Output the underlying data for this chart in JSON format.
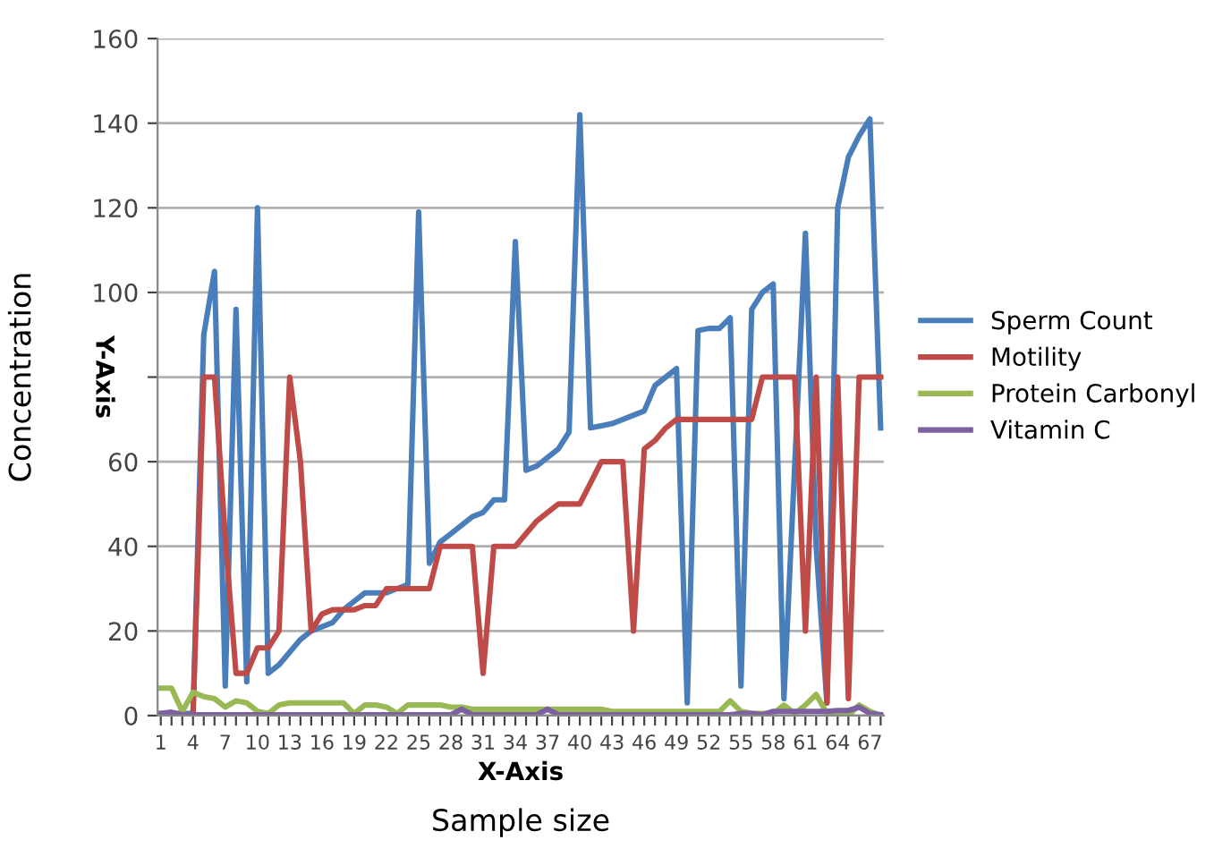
{
  "chart_data": {
    "type": "line",
    "ylabel": "Concentration",
    "xlabel": "Sample size",
    "annotations": [
      "Y-Axis",
      "X-Axis"
    ],
    "categories": [
      "1",
      null,
      null,
      "4",
      null,
      null,
      "7",
      null,
      null,
      "10",
      null,
      null,
      "13",
      null,
      null,
      "16",
      null,
      null,
      "19",
      null,
      null,
      "22",
      null,
      null,
      "25",
      null,
      null,
      "28",
      null,
      null,
      "31",
      null,
      null,
      "34",
      null,
      null,
      "37",
      null,
      null,
      "40",
      null,
      null,
      "43",
      null,
      null,
      "46",
      null,
      null,
      "49",
      null,
      null,
      "52",
      null,
      null,
      "55",
      null,
      null,
      "58",
      null,
      null,
      "61",
      null,
      null,
      "64",
      null,
      null,
      "67",
      null
    ],
    "series": [
      {
        "name": "Sperm Count",
        "color": "#4a7ebb",
        "values": [
          0.5,
          0.5,
          0.5,
          0.5,
          90,
          105,
          7,
          96,
          8,
          120,
          10,
          12,
          15,
          18,
          20,
          21,
          22,
          25,
          27,
          29,
          29,
          29,
          30,
          31,
          119,
          36,
          41,
          43,
          45,
          47,
          48,
          51,
          51,
          112,
          58,
          59,
          61,
          63,
          67,
          142,
          68,
          68.5,
          69,
          70,
          71,
          72,
          78,
          80,
          82,
          3,
          91,
          91.5,
          91.5,
          94,
          7,
          96,
          100,
          102,
          4,
          59,
          114,
          40,
          3,
          120,
          132,
          137,
          141,
          68
        ]
      },
      {
        "name": "Motility",
        "color": "#be4b48",
        "values": [
          0,
          0.5,
          0,
          0,
          80,
          80,
          42,
          10,
          10,
          16,
          16,
          20,
          80,
          60,
          20,
          24,
          25,
          25,
          25,
          26,
          26,
          30,
          30,
          30,
          30,
          30,
          40,
          40,
          40,
          40,
          10,
          40,
          40,
          40,
          43,
          46,
          48,
          50,
          50,
          50,
          55,
          60,
          60,
          60,
          20,
          63,
          65,
          68,
          70,
          70,
          70,
          70,
          70,
          70,
          70,
          70,
          80,
          80,
          80,
          80,
          20,
          80,
          3,
          80,
          4,
          80,
          80,
          80
        ]
      },
      {
        "name": "Protein Carbonyl",
        "color": "#98b954",
        "values": [
          6.5,
          6.5,
          1,
          5.5,
          4.5,
          4,
          2,
          3.5,
          3,
          1,
          0.5,
          2.5,
          3,
          3,
          3,
          3,
          3,
          3,
          0.5,
          2.5,
          2.5,
          2,
          0.5,
          2.5,
          2.5,
          2.5,
          2.5,
          2,
          2,
          1.5,
          1.5,
          1.5,
          1.5,
          1.5,
          1.5,
          1.5,
          1.5,
          1.5,
          1.5,
          1.5,
          1.5,
          1.5,
          1,
          1,
          1,
          1,
          1,
          1,
          1,
          1,
          1,
          1,
          1,
          3.5,
          1,
          0.5,
          0.5,
          0.5,
          2.5,
          0.5,
          2.5,
          5,
          0.5,
          0,
          0,
          2.5,
          1,
          0
        ]
      },
      {
        "name": "Vitamin C",
        "color": "#7d60a0",
        "values": [
          0.5,
          0.8,
          0.2,
          0.2,
          0.2,
          0.2,
          0.2,
          0.2,
          0.2,
          0.2,
          0.2,
          0.2,
          0.2,
          0.2,
          0.2,
          0.2,
          0.2,
          0.2,
          0.2,
          0.2,
          0.2,
          0.2,
          0.2,
          0.2,
          0.2,
          0.2,
          0.2,
          0.2,
          1.5,
          0.2,
          0.2,
          0.2,
          0.2,
          0.2,
          0.2,
          0.2,
          1.5,
          0.2,
          0.2,
          0.2,
          0.2,
          0.2,
          0.2,
          0.2,
          0.2,
          0.2,
          0.2,
          0.2,
          0.2,
          0.2,
          0.2,
          0.2,
          0.2,
          0.2,
          0.5,
          0.5,
          0.2,
          1,
          1,
          1,
          1,
          1,
          1,
          1.2,
          1.2,
          2,
          0.5,
          0.2
        ]
      }
    ],
    "ylim": [
      0,
      160
    ],
    "yticks": [
      0,
      20,
      40,
      60,
      {
        "value": 80,
        "label": null
      },
      100,
      120,
      140,
      160
    ],
    "grid": "y",
    "legend": "right",
    "marker": "none",
    "line_style": "solid"
  }
}
